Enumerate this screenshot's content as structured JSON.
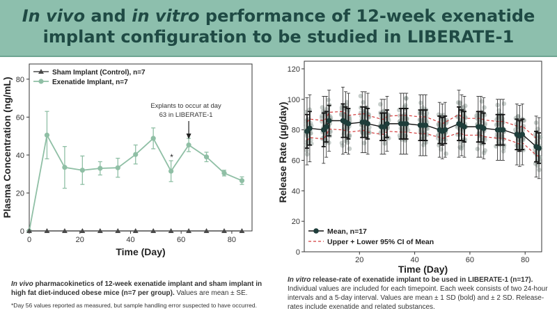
{
  "header": {
    "title_line1_it1": "In vivo",
    "title_line1_mid": " and ",
    "title_line1_it2": "in vitro",
    "title_line1_rest": " performance of 12-week exenatide",
    "title_line2": "implant configuration to be studied in LIBERATE-1"
  },
  "colors": {
    "banner": "#8dbfad",
    "title": "#1f4a44",
    "exenatide": "#8fbfa5",
    "sham": "#4a4a4a",
    "mean": "#1e3d3a",
    "ci": "#d23b3b",
    "scatter": "#9aa8a2"
  },
  "left_caption": {
    "it": "In vivo",
    "bold": " pharmacokinetics of 12-week exenatide implant and sham implant in high fat diet-induced obese mice (n=7 per group).",
    "rest": " Values are mean ± SE.",
    "footnote": "*Day 56 values reported as measured, but sample handling error suspected to have occurred."
  },
  "right_caption": {
    "it": "In vitro",
    "bold": " release-rate of exenatide implant to be used in LIBERATE-1 (n=17).",
    "rest": " Individual values are included for each timepoint. Each week consists of two 24-hour intervals and a 5-day interval. Values are mean ± 1 SD (bold) and ± 2 SD. Release-rates include exenatide and related substances."
  },
  "chart_data": [
    {
      "type": "line",
      "xlabel": "Time (Day)",
      "ylabel": "Plasma Concentration (ng/mL)",
      "xlim": [
        0,
        88
      ],
      "ylim": [
        0,
        88
      ],
      "xticks": [
        0,
        20,
        40,
        60,
        80
      ],
      "yticks": [
        0,
        20,
        40,
        60,
        80
      ],
      "legend": [
        "Sham Implant (Control), n=7",
        "Exenatide Implant, n=7"
      ],
      "legend_position": "top-left",
      "annotation": "Explants to occur at day 63 in LIBERATE-1",
      "annotation_line1": "Explants to occur at day",
      "annotation_line2": "63 in LIBERATE-1",
      "annotation_x": 63,
      "asterisk_label": "*",
      "asterisk_day": 56,
      "series": [
        {
          "name": "Sham Implant (Control), n=7",
          "x": [
            0,
            7,
            14,
            21,
            28,
            35,
            42,
            49,
            56,
            63,
            70,
            77,
            84
          ],
          "y": [
            0,
            0,
            0,
            0,
            0,
            0,
            0,
            0,
            0,
            0,
            0,
            0,
            0
          ],
          "err": [
            0,
            0,
            0,
            0,
            0,
            0,
            0,
            0,
            0,
            0,
            0,
            0,
            0
          ]
        },
        {
          "name": "Exenatide Implant, n=7",
          "x": [
            0,
            7,
            14,
            21,
            28,
            35,
            42,
            49,
            56,
            63,
            70,
            77,
            84
          ],
          "y": [
            0,
            50.5,
            33.5,
            32,
            33,
            33.3,
            40.3,
            48.8,
            31.5,
            45.3,
            39,
            30.5,
            26.5
          ],
          "err": [
            0,
            12.5,
            11,
            7.5,
            3.5,
            5,
            5,
            5.5,
            5.5,
            3.5,
            2.5,
            1.5,
            2
          ]
        }
      ]
    },
    {
      "type": "scatter",
      "xlabel": "Time (Day)",
      "ylabel": "Release Rate (µg/day)",
      "xlim": [
        0,
        86
      ],
      "ylim": [
        0,
        125
      ],
      "xticks": [
        20,
        40,
        60,
        80
      ],
      "yticks": [
        0,
        20,
        40,
        60,
        80,
        100,
        120
      ],
      "legend": [
        "Mean, n=17",
        "Upper + Lower 95% CI of Mean"
      ],
      "legend_position": "bottom-left",
      "series": [
        {
          "name": "Mean, n=17",
          "x": [
            1,
            2,
            7,
            8,
            9,
            14,
            15,
            16,
            21,
            22,
            23,
            28,
            29,
            30,
            35,
            36,
            37,
            42,
            43,
            44,
            49,
            50,
            51,
            56,
            57,
            58,
            63,
            64,
            65,
            70,
            71,
            72,
            77,
            78,
            79,
            84,
            85
          ],
          "y": [
            79,
            81,
            80,
            82,
            86,
            86,
            85,
            84,
            85,
            85,
            84,
            82,
            82,
            84,
            84,
            84,
            84,
            83,
            83,
            83,
            80,
            79,
            80,
            84,
            83,
            82,
            82,
            82,
            81,
            80,
            80,
            80,
            77,
            76,
            77,
            69,
            68
          ],
          "sd": [
            11,
            11,
            11,
            10,
            10,
            11,
            10,
            10,
            10,
            10,
            10,
            9,
            9,
            9,
            10,
            10,
            10,
            10,
            10,
            10,
            9,
            9,
            9,
            11,
            10,
            10,
            10,
            10,
            10,
            10,
            10,
            10,
            10,
            10,
            10,
            10,
            10
          ]
        }
      ]
    }
  ]
}
